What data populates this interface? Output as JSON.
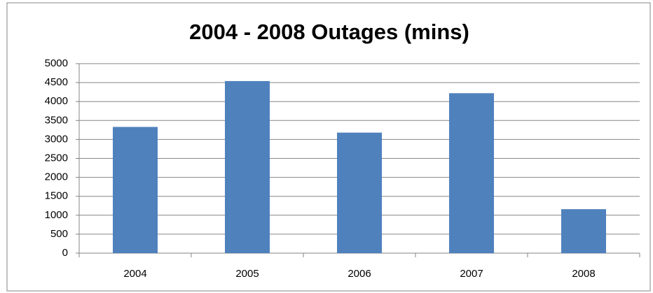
{
  "chart_data": {
    "type": "bar",
    "title": "2004 - 2008 Outages (mins)",
    "categories": [
      "2004",
      "2005",
      "2006",
      "2007",
      "2008"
    ],
    "values": [
      3330,
      4540,
      3180,
      4220,
      1160
    ],
    "color": "#4f81bd",
    "ylim": [
      0,
      5000
    ],
    "yticks": [
      0,
      500,
      1000,
      1500,
      2000,
      2500,
      3000,
      3500,
      4000,
      4500,
      5000
    ],
    "grid": true
  }
}
